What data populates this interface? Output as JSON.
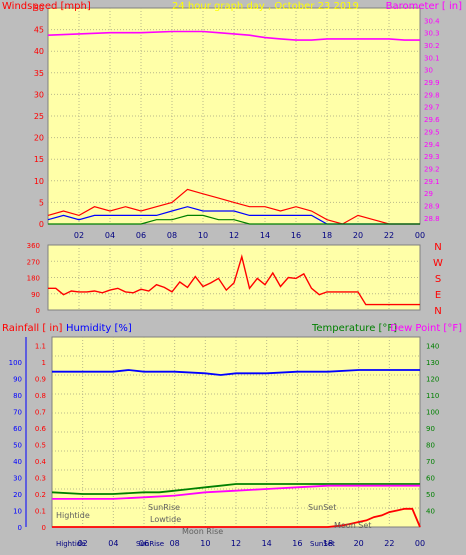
{
  "chart_data": [
    {
      "id": "wind-baro",
      "type": "line",
      "title": "24 hour graph day , October 23 2019",
      "left_label": "Windspeed [mph]",
      "right_label": "Barometer [ in]",
      "x_ticks": [
        "02",
        "04",
        "06",
        "08",
        "10",
        "12",
        "14",
        "16",
        "18",
        "20",
        "22",
        "00"
      ],
      "yleft_ticks": [
        "0",
        "5",
        "10",
        "15",
        "20",
        "25",
        "30",
        "35",
        "40",
        "45",
        "50"
      ],
      "yright_ticks": [
        "28.8",
        "28.9",
        "29",
        "29.1",
        "29.2",
        "29.3",
        "29.4",
        "29.5",
        "29.6",
        "29.7",
        "29.8",
        "29.9",
        "30",
        "30.1",
        "30.2",
        "30.3",
        "30.4"
      ],
      "ylim_left": [
        0,
        50
      ],
      "ylim_right": [
        28.75,
        30.5
      ],
      "series": [
        {
          "color": "#ff00ff",
          "axis": "right",
          "x": [
            0,
            2,
            4,
            6,
            8,
            9,
            10,
            11,
            12,
            13,
            14,
            15,
            16,
            17,
            18,
            19,
            20,
            21,
            22,
            23,
            24
          ],
          "y": [
            30.28,
            30.29,
            30.3,
            30.3,
            30.31,
            30.31,
            30.31,
            30.3,
            30.29,
            30.28,
            30.26,
            30.25,
            30.24,
            30.24,
            30.25,
            30.25,
            30.25,
            30.25,
            30.25,
            30.24,
            30.24
          ]
        },
        {
          "color": "#ff0000",
          "axis": "left",
          "x": [
            0,
            1,
            2,
            3,
            4,
            5,
            6,
            7,
            8,
            9,
            10,
            11,
            12,
            13,
            14,
            15,
            16,
            17,
            18,
            19,
            20,
            21,
            22,
            23,
            24
          ],
          "y": [
            2,
            3,
            2,
            4,
            3,
            4,
            3,
            4,
            5,
            8,
            7,
            6,
            5,
            4,
            4,
            3,
            4,
            3,
            1,
            0,
            2,
            1,
            0,
            0,
            0
          ]
        },
        {
          "color": "#0000ff",
          "axis": "left",
          "x": [
            0,
            1,
            2,
            3,
            4,
            5,
            6,
            7,
            8,
            9,
            10,
            11,
            12,
            13,
            14,
            15,
            16,
            17,
            18,
            19,
            20,
            21,
            22,
            23,
            24
          ],
          "y": [
            1,
            2,
            1,
            2,
            2,
            2,
            2,
            2,
            3,
            4,
            3,
            3,
            3,
            2,
            2,
            2,
            2,
            2,
            0,
            0,
            0,
            0,
            0,
            0,
            0
          ]
        },
        {
          "color": "#008000",
          "axis": "left",
          "x": [
            0,
            2,
            4,
            6,
            7,
            8,
            9,
            10,
            11,
            12,
            13,
            14,
            16,
            18,
            20,
            22,
            24
          ],
          "y": [
            0,
            0,
            0,
            0,
            1,
            1,
            2,
            2,
            1,
            1,
            0,
            0,
            0,
            0,
            0,
            0,
            0
          ]
        }
      ]
    },
    {
      "id": "wind-direction",
      "type": "line",
      "y_ticks": [
        "0",
        "90",
        "180",
        "270",
        "360"
      ],
      "ylim": [
        0,
        360
      ],
      "compass": [
        "N",
        "W",
        "S",
        "E",
        "N"
      ],
      "series": [
        {
          "color": "#ff0000",
          "x": [
            0,
            0.5,
            1,
            1.5,
            2,
            2.5,
            3,
            3.5,
            4,
            4.5,
            5,
            5.5,
            6,
            6.5,
            7,
            7.5,
            8,
            8.5,
            9,
            9.5,
            10,
            10.5,
            11,
            11.5,
            12,
            12.5,
            13,
            13.5,
            14,
            14.5,
            15,
            15.5,
            16,
            16.5,
            17,
            17.5,
            18,
            19,
            20,
            20.5,
            24
          ],
          "y": [
            120,
            120,
            85,
            105,
            100,
            100,
            105,
            95,
            110,
            120,
            100,
            95,
            115,
            105,
            140,
            125,
            100,
            155,
            125,
            185,
            130,
            150,
            175,
            110,
            150,
            295,
            120,
            175,
            140,
            205,
            130,
            180,
            175,
            200,
            120,
            85,
            100,
            100,
            100,
            30,
            30
          ]
        }
      ]
    },
    {
      "id": "rain-hum-temp",
      "type": "line",
      "labels": {
        "rainfall": "Rainfall [ in]",
        "humidity": "Humidity [%]",
        "temperature": "Temperature [°F]",
        "dewpoint": "Dew Point [°F]"
      },
      "y_rain_ticks": [
        "0",
        "0.1",
        "0.2",
        "0.3",
        "0.4",
        "0.5",
        "0.6",
        "0.7",
        "0.8",
        "0.9",
        "1",
        "1.1"
      ],
      "y_hum_ticks": [
        "0",
        "10",
        "20",
        "30",
        "40",
        "50",
        "60",
        "70",
        "80",
        "90",
        "100"
      ],
      "y_temp_ticks": [
        "40",
        "50",
        "60",
        "70",
        "80",
        "90",
        "100",
        "110",
        "120",
        "130",
        "140"
      ],
      "ylim_rain": [
        0,
        1.15
      ],
      "ylim_temp": [
        30,
        145
      ],
      "annotations": [
        "Hightide",
        "SunRise",
        "Lowtide",
        "Moon Rise",
        "SunSet",
        "Moon Set"
      ],
      "bottom_labels": [
        "Hightide",
        "SunRise",
        "SunSet"
      ],
      "series": [
        {
          "name": "Humidity [%]",
          "color": "#0000ff",
          "axis": "hum",
          "x": [
            0,
            2,
            4,
            5,
            6,
            8,
            10,
            11,
            12,
            13,
            14,
            16,
            18,
            20,
            22,
            24
          ],
          "y": [
            94,
            94,
            94,
            95,
            94,
            94,
            93,
            92,
            93,
            93,
            93,
            94,
            94,
            95,
            95,
            95
          ]
        },
        {
          "name": "Temperature [°F]",
          "color": "#008000",
          "axis": "temp",
          "x": [
            0,
            2,
            4,
            6,
            7,
            8,
            9,
            10,
            11,
            12,
            13,
            14,
            16,
            18,
            20,
            22,
            24
          ],
          "y": [
            51,
            50,
            50,
            51,
            51,
            52,
            53,
            54,
            55,
            56,
            56,
            56,
            56,
            56,
            56,
            56,
            56
          ]
        },
        {
          "name": "Dew Point [°F]",
          "color": "#ff00ff",
          "axis": "temp",
          "x": [
            0,
            2,
            4,
            6,
            8,
            10,
            12,
            14,
            16,
            18,
            20,
            22,
            24
          ],
          "y": [
            47,
            47,
            47,
            48,
            49,
            51,
            52,
            53,
            54,
            55,
            55,
            55,
            55
          ]
        },
        {
          "name": "Rainfall [ in]",
          "color": "#ff0000",
          "axis": "rain",
          "x": [
            0,
            18,
            19,
            19.5,
            20,
            20.5,
            21,
            21.5,
            22,
            22.5,
            23,
            23.5,
            24
          ],
          "y": [
            0,
            0,
            0.01,
            0.02,
            0.03,
            0.04,
            0.06,
            0.07,
            0.09,
            0.1,
            0.11,
            0.11,
            0
          ]
        }
      ]
    }
  ]
}
